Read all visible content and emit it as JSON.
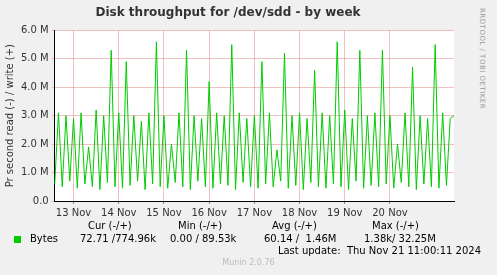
{
  "chart_data": {
    "type": "line",
    "title": "Disk throughput for /dev/sdd - by week",
    "y_label": "Pr second read (-) / write (+)",
    "side_text": "RRDTOOL / TOBI OETIKER",
    "categories": [
      null,
      null,
      null,
      null,
      null,
      "13 Nov",
      null,
      null,
      null,
      null,
      null,
      null,
      null,
      null,
      null,
      null,
      null,
      "14 Nov",
      null,
      null,
      null,
      null,
      null,
      null,
      null,
      null,
      null,
      null,
      null,
      "15 Nov",
      null,
      null,
      null,
      null,
      null,
      null,
      null,
      null,
      null,
      null,
      null,
      "16 Nov",
      null,
      null,
      null,
      null,
      null,
      null,
      null,
      null,
      null,
      null,
      null,
      "17 Nov",
      null,
      null,
      null,
      null,
      null,
      null,
      null,
      null,
      null,
      null,
      null,
      "18 Nov",
      null,
      null,
      null,
      null,
      null,
      null,
      null,
      null,
      null,
      null,
      null,
      "19 Nov",
      null,
      null,
      null,
      null,
      null,
      null,
      null,
      null,
      null,
      null,
      null,
      "20 Nov",
      null,
      null,
      null,
      null,
      null,
      null,
      null,
      null,
      null,
      null,
      null,
      null,
      null,
      null,
      null,
      null,
      null
    ],
    "series": [
      {
        "name": "Bytes",
        "color": "#00cc00",
        "values": [
          600000,
          3100000,
          500000,
          3000000,
          700000,
          2900000,
          450000,
          3100000,
          600000,
          1900000,
          500000,
          3200000,
          400000,
          3000000,
          650000,
          5300000,
          500000,
          3100000,
          450000,
          4900000,
          550000,
          3000000,
          700000,
          2800000,
          400000,
          3100000,
          600000,
          5600000,
          500000,
          3000000,
          450000,
          2000000,
          650000,
          3100000,
          500000,
          5300000,
          400000,
          3000000,
          700000,
          2900000,
          500000,
          4200000,
          450000,
          3100000,
          600000,
          3000000,
          550000,
          5500000,
          400000,
          3100000,
          650000,
          2900000,
          500000,
          3000000,
          450000,
          4900000,
          600000,
          3100000,
          500000,
          1800000,
          700000,
          5200000,
          450000,
          3000000,
          550000,
          3100000,
          400000,
          2900000,
          650000,
          4600000,
          500000,
          3100000,
          450000,
          3000000,
          600000,
          5600000,
          500000,
          3200000,
          400000,
          2900000,
          700000,
          5300000,
          450000,
          3000000,
          550000,
          3100000,
          500000,
          5300000,
          600000,
          3000000,
          450000,
          2000000,
          650000,
          3100000,
          500000,
          4700000,
          400000,
          3000000,
          600000,
          2900000,
          500000,
          5500000,
          450000,
          3100000,
          550000,
          2900000,
          3000000
        ]
      }
    ],
    "ylim": [
      0,
      6000000
    ],
    "yticks": [
      {
        "value": 0,
        "label": "0.0"
      },
      {
        "value": 1000000,
        "label": "1.0 M"
      },
      {
        "value": 2000000,
        "label": "2.0 M"
      },
      {
        "value": 3000000,
        "label": "3.0 M"
      },
      {
        "value": 4000000,
        "label": "4.0 M"
      },
      {
        "value": 5000000,
        "label": "5.0 M"
      },
      {
        "value": 6000000,
        "label": "6.0 M"
      }
    ],
    "grid": true,
    "legend": "bottom",
    "stats": {
      "headers": [
        "Cur (-/+)",
        "Min (-/+)",
        "Avg (-/+)",
        "Max (-/+)"
      ],
      "values": [
        "72.71 /774.96k",
        "0.00 / 89.53k",
        "60.14 /  1.46M",
        "1.38k/ 32.25M"
      ]
    },
    "last_update": "Last update:  Thu Nov 21 11:00:11 2024",
    "footer": "Munin 2.0.76"
  }
}
